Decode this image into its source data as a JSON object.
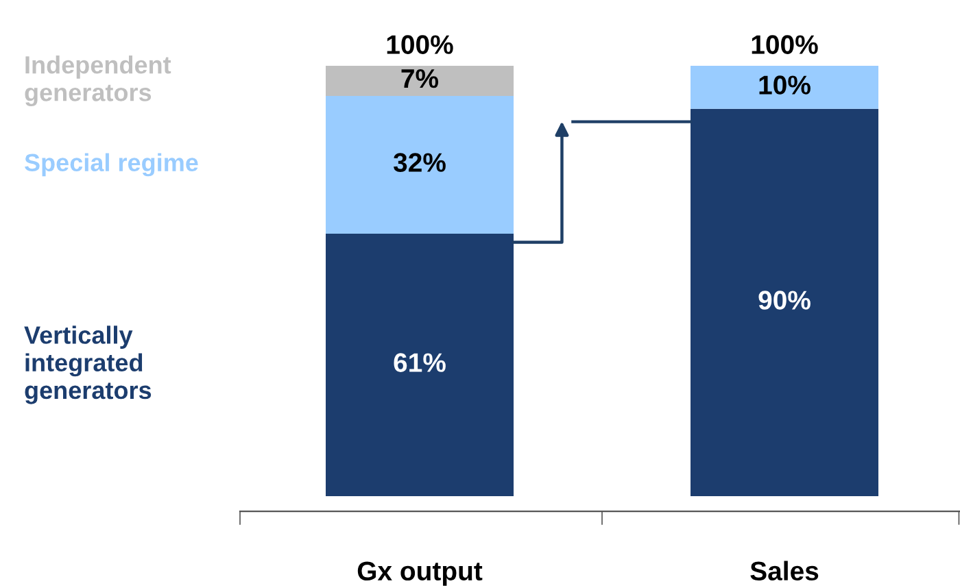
{
  "chart_data": {
    "type": "bar",
    "stacked": true,
    "categories": [
      "Gx output",
      "Sales"
    ],
    "series": [
      {
        "name": "Vertically\nintegrated\ngenerators",
        "color": "#1c3d6e",
        "values": [
          61,
          90
        ],
        "value_labels": [
          "61%",
          "90%"
        ]
      },
      {
        "name": "Special regime",
        "color": "#99ccff",
        "values": [
          32,
          10
        ],
        "value_labels": [
          "32%",
          "10%"
        ]
      },
      {
        "name": "Independent\ngenerators",
        "color": "#bfbfbf",
        "values": [
          7,
          null
        ],
        "value_labels": [
          "7%",
          null
        ]
      }
    ],
    "totals": [
      "100%",
      "100%"
    ],
    "legend": false,
    "grid": false
  }
}
